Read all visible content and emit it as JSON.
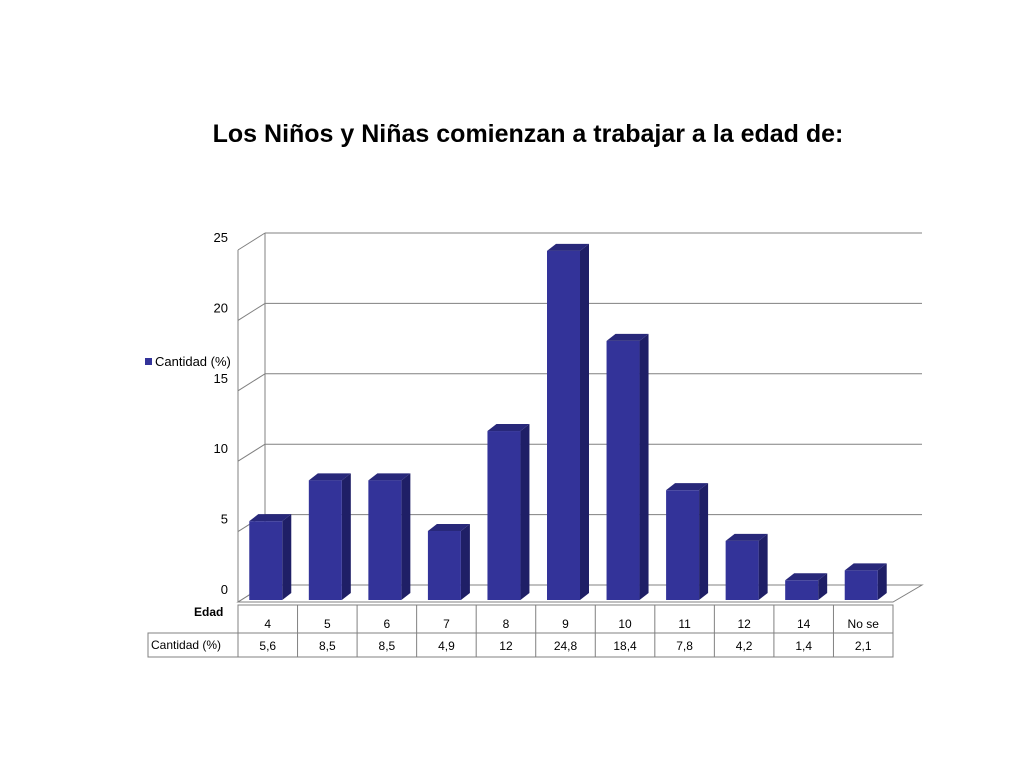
{
  "chart_data": {
    "type": "bar",
    "title": "Los Niños y Niñas comienzan a trabajar a la edad de:",
    "xlabel": "Edad",
    "ylabel": "",
    "categories": [
      "4",
      "5",
      "6",
      "7",
      "8",
      "9",
      "10",
      "11",
      "12",
      "14",
      "No se"
    ],
    "series": [
      {
        "name": "Cantidad (%)",
        "values": [
          5.6,
          8.5,
          8.5,
          4.9,
          12,
          24.8,
          18.4,
          7.8,
          4.2,
          1.4,
          2.1
        ],
        "labels": [
          "5,6",
          "8,5",
          "8,5",
          "4,9",
          "12",
          "24,8",
          "18,4",
          "7,8",
          "4,2",
          "1,4",
          "2,1"
        ]
      }
    ],
    "ylim": [
      0,
      25
    ],
    "yticks": [
      "0",
      "5",
      "10",
      "15",
      "20",
      "25"
    ],
    "grid": true,
    "legend_position": "left",
    "data_table": true,
    "style": "3d-column"
  },
  "colors": {
    "bar_front": "#333399",
    "bar_top": "#28287a",
    "bar_side": "#1f1f66",
    "gridline": "#808080",
    "axis": "#808080"
  }
}
